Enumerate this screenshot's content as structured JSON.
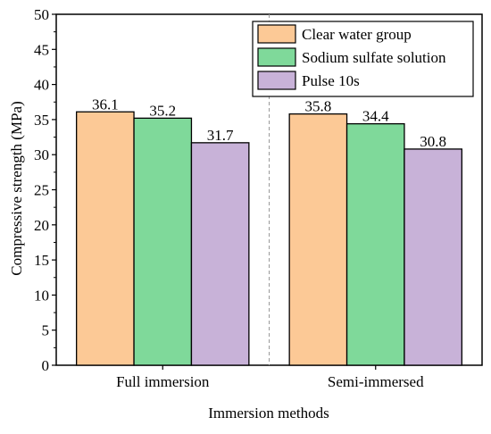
{
  "chart_data": {
    "type": "bar",
    "categories": [
      "Full immersion",
      "Semi-immersed"
    ],
    "series": [
      {
        "name": "Clear water group",
        "values": [
          36.1,
          35.8
        ],
        "color": "#FCC996"
      },
      {
        "name": "Sodium sulfate solution",
        "values": [
          35.2,
          34.4
        ],
        "color": "#7FD99A"
      },
      {
        "name": "Pulse 10s",
        "values": [
          31.7,
          30.8
        ],
        "color": "#C8B2D8"
      }
    ],
    "data_labels": [
      [
        "36.1",
        "35.8"
      ],
      [
        "35.2",
        "34.4"
      ],
      [
        "31.7",
        "30.8"
      ]
    ],
    "xlabel": "Immersion methods",
    "ylabel": "Compressive strength (MPa)",
    "ylim": [
      0,
      50
    ],
    "yticks": [
      "0",
      "5",
      "10",
      "15",
      "20",
      "25",
      "30",
      "35",
      "40",
      "45",
      "50"
    ],
    "grid": false,
    "legend_position": "top-right"
  }
}
